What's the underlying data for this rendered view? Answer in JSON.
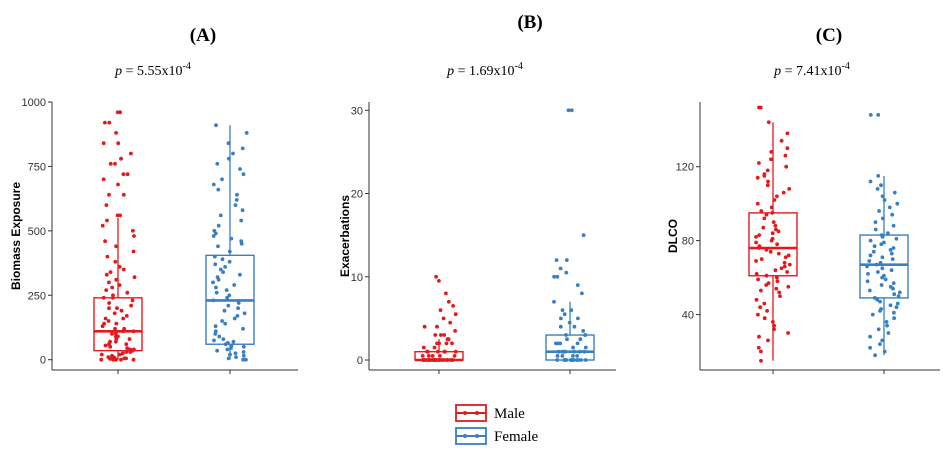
{
  "figure": {
    "group_colors": {
      "Male": "#e31a1c",
      "Female": "#3a7fc1"
    }
  },
  "legend": {
    "position": "bottom",
    "entries": [
      {
        "label": "Male",
        "color": "#e31a1c"
      },
      {
        "label": "Female",
        "color": "#3a7fc1"
      }
    ]
  },
  "chart_data": [
    {
      "type": "box",
      "panel_label": "(A)",
      "p_label": "p",
      "p_value_text": " = 5.55x10",
      "p_exponent": "-4",
      "ylabel": "Biomass Exposure",
      "xlabel": "",
      "ylim": [
        -40,
        1000
      ],
      "yticks": [
        0,
        250,
        500,
        750,
        1000
      ],
      "grid": false,
      "categories": [
        "Male",
        "Female"
      ],
      "boxes": [
        {
          "group": "Male",
          "min": 0,
          "q1": 35,
          "median": 110,
          "q3": 240,
          "max": 550,
          "points": [
            960,
            960,
            920,
            920,
            880,
            840,
            840,
            800,
            780,
            760,
            760,
            720,
            720,
            700,
            680,
            640,
            640,
            600,
            560,
            560,
            540,
            520,
            500,
            480,
            460,
            440,
            420,
            400,
            380,
            360,
            350,
            340,
            330,
            320,
            310,
            300,
            290,
            280,
            270,
            260,
            250,
            240,
            240,
            230,
            220,
            210,
            200,
            200,
            190,
            180,
            170,
            160,
            160,
            150,
            140,
            140,
            130,
            120,
            120,
            110,
            110,
            100,
            100,
            90,
            90,
            80,
            80,
            70,
            70,
            60,
            60,
            55,
            50,
            45,
            40,
            40,
            35,
            30,
            30,
            25,
            20,
            20,
            15,
            10,
            10,
            8,
            5,
            5,
            3,
            0,
            0,
            0,
            0,
            0
          ]
        },
        {
          "group": "Female",
          "min": 0,
          "q1": 60,
          "median": 230,
          "q3": 405,
          "max": 910,
          "points": [
            910,
            880,
            840,
            820,
            800,
            780,
            760,
            740,
            720,
            700,
            680,
            660,
            640,
            620,
            600,
            580,
            560,
            540,
            520,
            500,
            490,
            480,
            470,
            460,
            450,
            440,
            420,
            400,
            390,
            380,
            370,
            360,
            350,
            340,
            330,
            320,
            310,
            300,
            290,
            280,
            270,
            260,
            250,
            240,
            230,
            220,
            210,
            200,
            190,
            180,
            170,
            160,
            150,
            140,
            130,
            120,
            110,
            100,
            90,
            80,
            75,
            70,
            65,
            60,
            55,
            50,
            45,
            40,
            35,
            30,
            25,
            20,
            15,
            10,
            5,
            0,
            0
          ]
        }
      ]
    },
    {
      "type": "box",
      "panel_label": "(B)",
      "p_label": "p",
      "p_value_text": " = 1.69x10",
      "p_exponent": "-4",
      "ylabel": "Exacerbations",
      "xlabel": "",
      "ylim": [
        -1.2,
        31
      ],
      "yticks": [
        0,
        10,
        20,
        30
      ],
      "grid": false,
      "categories": [
        "Male",
        "Female"
      ],
      "boxes": [
        {
          "group": "Male",
          "min": 0,
          "q1": 0,
          "median": 0,
          "q3": 1,
          "max": 2.5,
          "points": [
            10,
            9.5,
            8,
            7,
            6.5,
            6,
            5.5,
            5,
            4.5,
            4,
            4,
            3.5,
            3,
            3,
            3,
            2.5,
            2.5,
            2,
            2,
            2,
            2,
            1.5,
            1.5,
            1,
            1,
            1,
            1,
            1,
            1,
            0.5,
            0.5,
            0.5,
            0.5,
            0.5,
            0,
            0,
            0,
            0,
            0,
            0,
            0,
            0,
            0,
            0,
            0,
            0,
            0,
            0,
            0,
            0,
            0,
            0,
            0,
            0,
            0,
            0,
            0,
            0,
            0,
            0,
            0
          ]
        },
        {
          "group": "Female",
          "min": 0,
          "q1": 0,
          "median": 1,
          "q3": 3,
          "max": 7,
          "points": [
            30,
            30,
            15,
            12,
            12,
            11,
            10.5,
            10,
            10,
            9,
            8,
            7,
            6,
            6,
            5.5,
            5,
            5,
            4.5,
            4,
            4,
            3.5,
            3,
            3,
            3,
            2.5,
            2.5,
            2,
            2,
            2,
            2,
            1.5,
            1.5,
            1,
            1,
            1,
            1,
            1,
            1,
            1,
            0.5,
            0.5,
            0.5,
            0.5,
            0,
            0,
            0,
            0,
            0,
            0,
            0,
            0,
            0,
            0,
            0,
            0,
            0,
            0,
            0
          ]
        }
      ]
    },
    {
      "type": "box",
      "panel_label": "(C)",
      "p_label": "p",
      "p_value_text": " = 7.41x10",
      "p_exponent": "-4",
      "ylabel": "DLCO",
      "xlabel": "",
      "ylim": [
        10,
        155
      ],
      "yticks": [
        40,
        80,
        120
      ],
      "grid": false,
      "categories": [
        "Male",
        "Female"
      ],
      "boxes": [
        {
          "group": "Male",
          "min": 15,
          "q1": 61,
          "median": 76,
          "q3": 95,
          "max": 144,
          "points": [
            152,
            152,
            144,
            138,
            134,
            130,
            128,
            126,
            124,
            122,
            120,
            118,
            116,
            115,
            114,
            112,
            110,
            108,
            106,
            104,
            102,
            100,
            98,
            96,
            95,
            94,
            92,
            90,
            88,
            87,
            86,
            85,
            84,
            83,
            82,
            81,
            80,
            79,
            78,
            77,
            76,
            75,
            74,
            73,
            72,
            71,
            70,
            69,
            68,
            67,
            66,
            65,
            64,
            63,
            62,
            61,
            60,
            59,
            58,
            57,
            56,
            55,
            54,
            53,
            52,
            50,
            48,
            46,
            44,
            42,
            40,
            38,
            36,
            34,
            32,
            30,
            28,
            26,
            22,
            20,
            15
          ]
        },
        {
          "group": "Female",
          "min": 18,
          "q1": 49,
          "median": 67,
          "q3": 83,
          "max": 115,
          "points": [
            148,
            148,
            115,
            112,
            110,
            108,
            106,
            104,
            102,
            100,
            98,
            96,
            94,
            92,
            90,
            88,
            86,
            84,
            83,
            82,
            81,
            80,
            79,
            78,
            77,
            76,
            75,
            74,
            73,
            72,
            71,
            70,
            69,
            68,
            67,
            66,
            65,
            64,
            63,
            62,
            61,
            60,
            59,
            58,
            57,
            56,
            55,
            54,
            53,
            52,
            51,
            50,
            49,
            48,
            47,
            46,
            45,
            44,
            43,
            42,
            41,
            40,
            38,
            36,
            34,
            32,
            30,
            28,
            26,
            24,
            22,
            20,
            18
          ]
        }
      ]
    }
  ]
}
